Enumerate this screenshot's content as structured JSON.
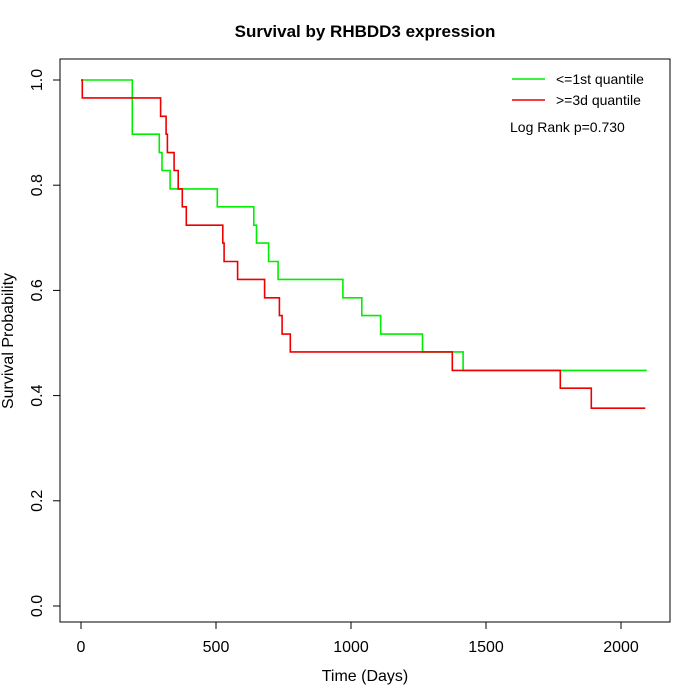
{
  "chart_data": {
    "type": "line",
    "subtype": "kaplan-meier-step",
    "title": "Survival by RHBDD3 expression",
    "xlabel": "Time (Days)",
    "ylabel": "Survival Probability",
    "xlim": [
      0,
      2100
    ],
    "ylim": [
      0,
      1.0
    ],
    "x_ticks": [
      0,
      500,
      1000,
      1500,
      2000
    ],
    "y_ticks": [
      0.0,
      0.2,
      0.4,
      0.6,
      0.8,
      1.0
    ],
    "x_tick_labels": [
      "0",
      "500",
      "1000",
      "1500",
      "2000"
    ],
    "y_tick_labels": [
      "0.0",
      "0.2",
      "0.4",
      "0.6",
      "0.8",
      "1.0"
    ],
    "grid": false,
    "legend_position": "top-right",
    "annotation": "Log Rank p=0.730",
    "series": [
      {
        "name": "<=1st quantile",
        "color": "#00ee00",
        "points": [
          [
            0,
            1.0
          ],
          [
            190,
            1.0
          ],
          [
            190,
            0.897
          ],
          [
            290,
            0.897
          ],
          [
            290,
            0.862
          ],
          [
            300,
            0.862
          ],
          [
            300,
            0.828
          ],
          [
            330,
            0.828
          ],
          [
            330,
            0.793
          ],
          [
            505,
            0.793
          ],
          [
            505,
            0.759
          ],
          [
            640,
            0.759
          ],
          [
            640,
            0.724
          ],
          [
            650,
            0.724
          ],
          [
            650,
            0.69
          ],
          [
            695,
            0.69
          ],
          [
            695,
            0.655
          ],
          [
            730,
            0.655
          ],
          [
            730,
            0.621
          ],
          [
            970,
            0.621
          ],
          [
            970,
            0.586
          ],
          [
            1040,
            0.586
          ],
          [
            1040,
            0.552
          ],
          [
            1110,
            0.552
          ],
          [
            1110,
            0.517
          ],
          [
            1265,
            0.517
          ],
          [
            1265,
            0.483
          ],
          [
            1415,
            0.483
          ],
          [
            1415,
            0.448
          ],
          [
            2095,
            0.448
          ]
        ]
      },
      {
        "name": ">=3d quantile",
        "color": "#ee0000",
        "points": [
          [
            0,
            1.0
          ],
          [
            5,
            1.0
          ],
          [
            5,
            0.966
          ],
          [
            295,
            0.966
          ],
          [
            295,
            0.931
          ],
          [
            315,
            0.931
          ],
          [
            315,
            0.897
          ],
          [
            320,
            0.897
          ],
          [
            320,
            0.862
          ],
          [
            345,
            0.862
          ],
          [
            345,
            0.828
          ],
          [
            360,
            0.828
          ],
          [
            360,
            0.793
          ],
          [
            375,
            0.793
          ],
          [
            375,
            0.759
          ],
          [
            390,
            0.759
          ],
          [
            390,
            0.724
          ],
          [
            525,
            0.724
          ],
          [
            525,
            0.69
          ],
          [
            530,
            0.69
          ],
          [
            530,
            0.655
          ],
          [
            580,
            0.655
          ],
          [
            580,
            0.621
          ],
          [
            680,
            0.621
          ],
          [
            680,
            0.586
          ],
          [
            735,
            0.586
          ],
          [
            735,
            0.552
          ],
          [
            745,
            0.552
          ],
          [
            745,
            0.517
          ],
          [
            775,
            0.517
          ],
          [
            775,
            0.483
          ],
          [
            1375,
            0.483
          ],
          [
            1375,
            0.448
          ],
          [
            1775,
            0.448
          ],
          [
            1775,
            0.414
          ],
          [
            1890,
            0.414
          ],
          [
            1890,
            0.376
          ],
          [
            2090,
            0.376
          ]
        ]
      }
    ]
  }
}
